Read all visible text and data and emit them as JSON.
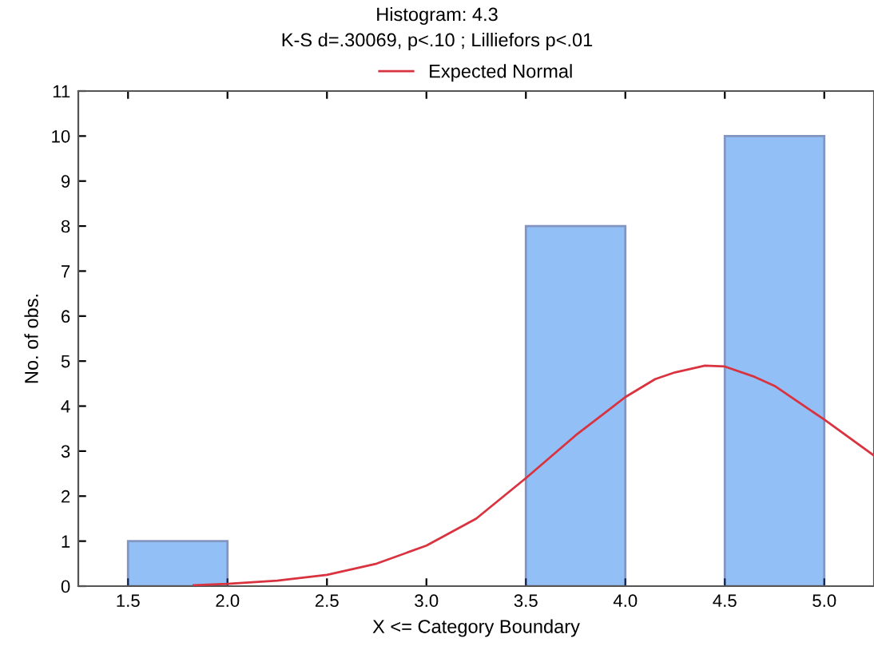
{
  "chart_data": {
    "type": "histogram",
    "title": "Histogram: 4.3",
    "subtitle": "K-S d=.30069, p<.10 ; Lilliefors p<.01",
    "xlabel": "X <= Category Boundary",
    "ylabel": "No. of obs.",
    "bins": [
      1.5,
      2.0,
      2.5,
      3.0,
      3.5,
      4.0,
      4.5,
      5.0
    ],
    "values": [
      1,
      0,
      0,
      0,
      8,
      0,
      10
    ],
    "color": "#3a8ef0",
    "series": [
      {
        "name": "Expected Normal",
        "type": "line",
        "color": "#d9333f",
        "x": [
          1.83,
          2.0,
          2.25,
          2.5,
          2.75,
          3.0,
          3.25,
          3.5,
          3.75,
          4.0,
          4.15,
          4.25,
          4.4,
          4.5,
          4.65,
          4.75,
          5.0,
          5.25
        ],
        "values": [
          0.02,
          0.05,
          0.12,
          0.25,
          0.5,
          0.9,
          1.5,
          2.4,
          3.35,
          4.2,
          4.6,
          4.75,
          4.9,
          4.88,
          4.65,
          4.45,
          3.7,
          2.9
        ]
      }
    ],
    "xlim": [
      1.25,
      5.25
    ],
    "xticks": [
      {
        "value": 1.5,
        "label": "1.5"
      },
      {
        "value": 2.0,
        "label": "2.0"
      },
      {
        "value": 2.5,
        "label": "2.5"
      },
      {
        "value": 3.0,
        "label": "3.0"
      },
      {
        "value": 3.5,
        "label": "3.5"
      },
      {
        "value": 4.0,
        "label": "4.0"
      },
      {
        "value": 4.5,
        "label": "4.5"
      },
      {
        "value": 5.0,
        "label": "5.0"
      }
    ],
    "ylim": [
      0,
      11
    ],
    "yticks": [
      0,
      1,
      2,
      3,
      4,
      5,
      6,
      7,
      8,
      9,
      10,
      11
    ],
    "grid": false,
    "legend": "top"
  }
}
